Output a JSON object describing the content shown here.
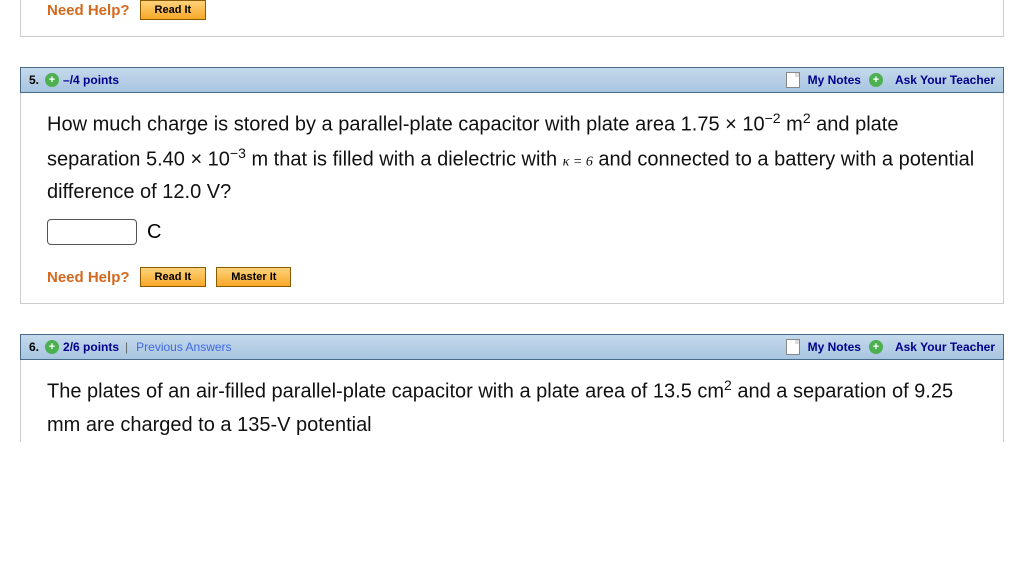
{
  "help": {
    "label": "Need Help?",
    "read_it": "Read It",
    "master_it": "Master It"
  },
  "header": {
    "my_notes": "My Notes",
    "ask_teacher": "Ask Your Teacher",
    "prev_answers": "Previous Answers"
  },
  "q_partial": {
    "body_html": ""
  },
  "q5": {
    "number": "5.",
    "points": "–/4 points",
    "body_html": "How much charge is stored by a parallel-plate capacitor with plate area 1.75 × 10<sup>−2</sup> m<sup>2</sup> and plate separation 5.40 × 10<sup>−3</sup> m that is filled with a dielectric with <span class='kappa'>κ = 6</span> and connected to a battery with a potential difference of 12.0 V?",
    "unit": "C",
    "answer": ""
  },
  "q6": {
    "number": "6.",
    "points": "2/6 points",
    "body_html": "The plates of an air-filled parallel-plate capacitor with a plate area of 13.5 cm<sup>2</sup> and a separation of 9.25 mm are charged to a 135-V potential"
  },
  "colors": {
    "header_bg_top": "#c4d9ec",
    "header_bg_bottom": "#a8c5e0",
    "accent_orange": "#d2691e",
    "link_blue": "#00008b",
    "btn_top": "#ffd27a",
    "btn_bottom": "#f7a828"
  }
}
